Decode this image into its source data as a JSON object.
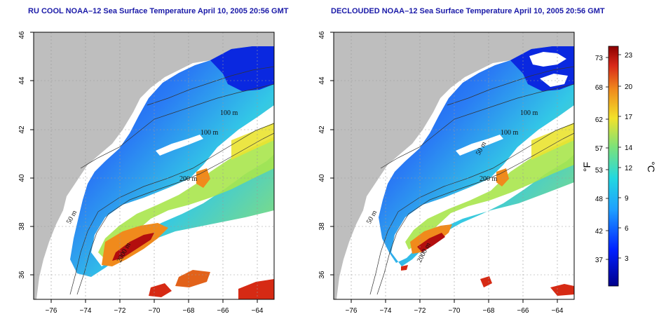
{
  "maps": [
    {
      "id": "left",
      "title": "RU COOL NOAA–12 Sea Surface Temperature April 10, 2005 20:56 GMT",
      "isobath_labels": [
        "100 m",
        "100 m",
        "200 m",
        "50 m",
        "2000 m"
      ]
    },
    {
      "id": "right",
      "title": "DECLOUDED NOAA–12 Sea Surface Temperature April 10, 2005 20:56 GMT",
      "isobath_labels": [
        "100 m",
        "100 m",
        "200 m",
        "50 m",
        "50 m",
        "2000 m"
      ]
    }
  ],
  "axes": {
    "x_ticks": [
      "−76",
      "−74",
      "−72",
      "−70",
      "−68",
      "−66",
      "−64"
    ],
    "y_ticks": [
      "36",
      "38",
      "40",
      "42",
      "44",
      "46"
    ],
    "x_range": [
      -77,
      -63
    ],
    "y_range": [
      35,
      46
    ]
  },
  "colorbar": {
    "fahrenheit_label": "°F",
    "celsius_label": "°C",
    "fahrenheit_ticks": [
      "73",
      "68",
      "62",
      "57",
      "53",
      "48",
      "42",
      "37"
    ],
    "celsius_ticks": [
      "23",
      "20",
      "17",
      "14",
      "12",
      "9",
      "6",
      "3"
    ],
    "colors": {
      "low": "#00008b",
      "blue": "#0f3fff",
      "cyan": "#22d0e8",
      "green": "#6fe07a",
      "yellow": "#f2e22a",
      "orange": "#f08a1c",
      "red": "#9e0000"
    }
  },
  "land_color": "#bebebe",
  "grid": true
}
